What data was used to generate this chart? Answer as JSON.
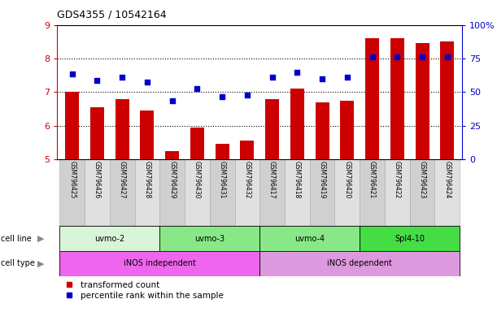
{
  "title": "GDS4355 / 10542164",
  "samples": [
    "GSM796425",
    "GSM796426",
    "GSM796427",
    "GSM796428",
    "GSM796429",
    "GSM796430",
    "GSM796431",
    "GSM796432",
    "GSM796417",
    "GSM796418",
    "GSM796419",
    "GSM796420",
    "GSM796421",
    "GSM796422",
    "GSM796423",
    "GSM796424"
  ],
  "red_values": [
    7.0,
    6.55,
    6.8,
    6.45,
    5.25,
    5.95,
    5.45,
    5.55,
    6.8,
    7.1,
    6.7,
    6.75,
    8.6,
    8.6,
    8.45,
    8.5
  ],
  "blue_values": [
    7.55,
    7.35,
    7.45,
    7.3,
    6.75,
    7.1,
    6.85,
    6.9,
    7.45,
    7.6,
    7.4,
    7.45,
    8.05,
    8.05,
    8.05,
    8.05
  ],
  "ylim_left": [
    5,
    9
  ],
  "ylim_right": [
    0,
    100
  ],
  "yticks_left": [
    5,
    6,
    7,
    8,
    9
  ],
  "yticks_right": [
    0,
    25,
    50,
    75,
    100
  ],
  "yticklabels_right": [
    "0",
    "25",
    "50",
    "75",
    "100%"
  ],
  "cell_lines": [
    {
      "label": "uvmo-2",
      "start": 0,
      "end": 4,
      "color": "#d8f5d8"
    },
    {
      "label": "uvmo-3",
      "start": 4,
      "end": 8,
      "color": "#88e888"
    },
    {
      "label": "uvmo-4",
      "start": 8,
      "end": 12,
      "color": "#88e888"
    },
    {
      "label": "Spl4-10",
      "start": 12,
      "end": 16,
      "color": "#44dd44"
    }
  ],
  "cell_types": [
    {
      "label": "iNOS independent",
      "start": 0,
      "end": 8,
      "color": "#ee66ee"
    },
    {
      "label": "iNOS dependent",
      "start": 8,
      "end": 16,
      "color": "#dd99dd"
    }
  ],
  "bar_color": "#cc0000",
  "dot_color": "#0000cc",
  "axis_left_color": "#cc0000",
  "axis_right_color": "#0000cc",
  "cell_line_row_label": "cell line",
  "cell_type_row_label": "cell type",
  "legend_red": "transformed count",
  "legend_blue": "percentile rank within the sample",
  "sample_col_colors": [
    "#d0d0d0",
    "#e0e0e0"
  ]
}
